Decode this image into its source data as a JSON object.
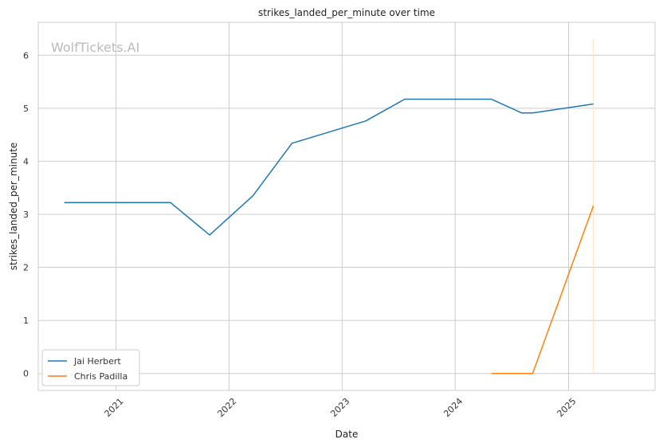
{
  "chart_data": {
    "type": "line",
    "title": "strikes_landed_per_minute over time",
    "xlabel": "Date",
    "ylabel": "strikes_landed_per_minute",
    "watermark": "WolfTickets.AI",
    "x_ticks": [
      "2021",
      "2022",
      "2023",
      "2024",
      "2025"
    ],
    "y_ticks": [
      "0",
      "1",
      "2",
      "3",
      "4",
      "5",
      "6"
    ],
    "xlim": [
      "2020-04-25",
      "2025-10-07"
    ],
    "ylim": [
      -0.32,
      6.62
    ],
    "grid": true,
    "legend_position": "lower-left",
    "series": [
      {
        "name": "Jai Herbert",
        "color": "#1f77b4",
        "points": [
          [
            "2020-07-18",
            3.22
          ],
          [
            "2021-06-26",
            3.22
          ],
          [
            "2021-10-30",
            2.61
          ],
          [
            "2022-03-19",
            3.35
          ],
          [
            "2022-07-23",
            4.34
          ],
          [
            "2023-03-18",
            4.76
          ],
          [
            "2023-07-22",
            5.17
          ],
          [
            "2024-04-27",
            5.17
          ],
          [
            "2024-08-03",
            4.91
          ],
          [
            "2024-09-07",
            4.91
          ],
          [
            "2025-03-22",
            5.08
          ]
        ]
      },
      {
        "name": "Chris Padilla",
        "color": "#ff7f0e",
        "points": [
          [
            "2024-04-27",
            0.0
          ],
          [
            "2024-09-07",
            0.0
          ],
          [
            "2025-03-22",
            3.16
          ]
        ]
      }
    ],
    "reference_line": {
      "x": "2025-03-22",
      "y_range": [
        0,
        6.3
      ],
      "color": "#ffe0c0"
    }
  }
}
